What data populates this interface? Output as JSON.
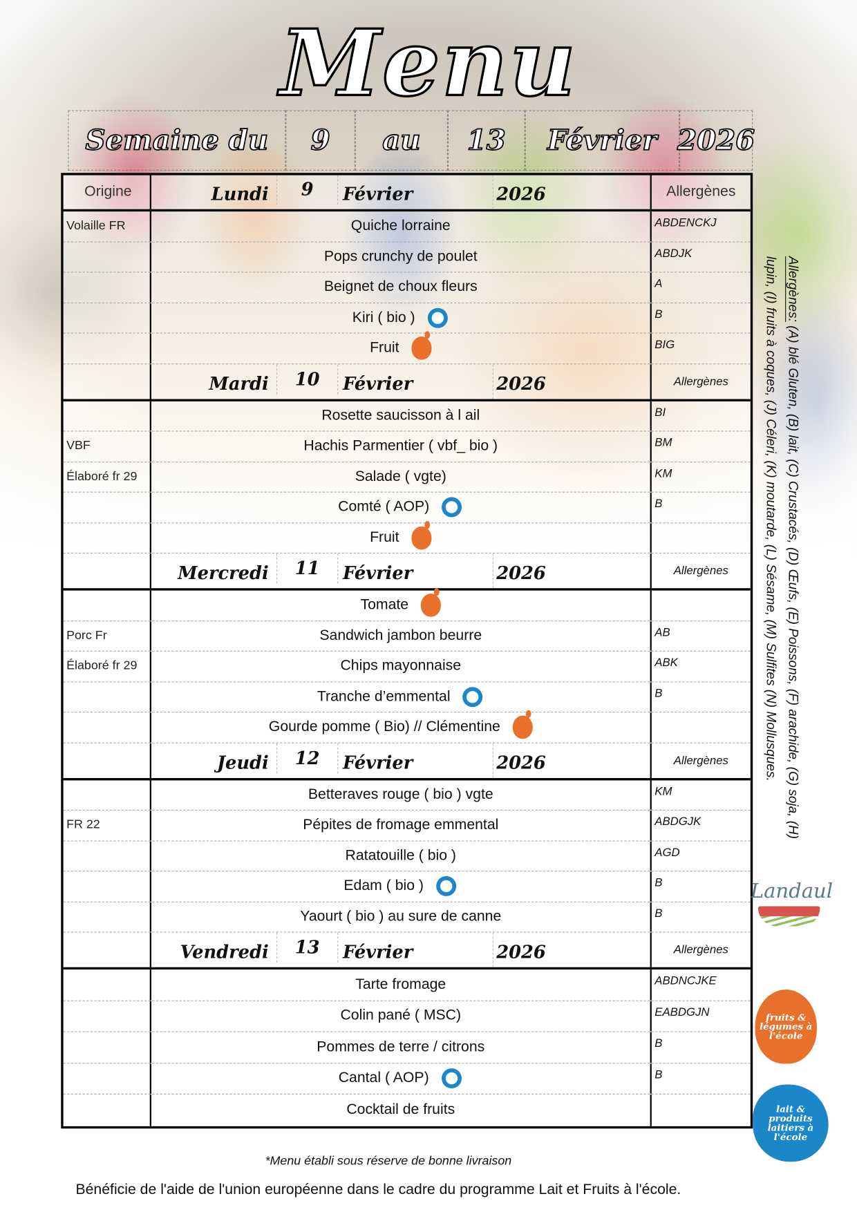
{
  "title": "Menu",
  "week": {
    "label": "Semaine du",
    "start": "9",
    "sep": "au",
    "end": "13",
    "month": "Février",
    "year": "2026"
  },
  "table_header": {
    "origin": "Origine",
    "allergens": "Allergènes"
  },
  "days": [
    {
      "day": "Lundi",
      "num": "9",
      "month": "Février",
      "year": "2026",
      "allergen_label": "",
      "items": [
        {
          "origin": "Volaille FR",
          "dish": "Quiche lorraine",
          "allergens": "ABDENCKJ",
          "logo": ""
        },
        {
          "origin": "",
          "dish": "Pops crunchy de poulet",
          "allergens": "ABDJK",
          "logo": ""
        },
        {
          "origin": "",
          "dish": "Beignet de  choux fleurs",
          "allergens": "A",
          "logo": ""
        },
        {
          "origin": "",
          "dish": "Kiri   ( bio )",
          "allergens": "B",
          "logo": "milk"
        },
        {
          "origin": "",
          "dish": "Fruit",
          "allergens": "BIG",
          "logo": "fruit"
        }
      ]
    },
    {
      "day": "Mardi",
      "num": "10",
      "month": "Février",
      "year": "2026",
      "allergen_label": "Allergènes",
      "items": [
        {
          "origin": "",
          "dish": "Rosette saucisson à l ail",
          "allergens": "BI",
          "logo": ""
        },
        {
          "origin": "VBF",
          "dish": "Hachis Parmentier  ( vbf_ bio )",
          "allergens": "BM",
          "logo": ""
        },
        {
          "origin": "Élaboré fr 29",
          "dish": "Salade  ( vgte)",
          "allergens": "KM",
          "logo": ""
        },
        {
          "origin": "",
          "dish": "Comté  ( AOP)",
          "allergens": "B",
          "logo": "milk"
        },
        {
          "origin": "",
          "dish": "Fruit",
          "allergens": "",
          "logo": "fruit"
        }
      ]
    },
    {
      "day": "Mercredi",
      "num": "11",
      "month": "Février",
      "year": "2026",
      "allergen_label": "Allergènes",
      "items": [
        {
          "origin": "",
          "dish": "Tomate",
          "allergens": "",
          "logo": "fruit"
        },
        {
          "origin": "Porc Fr",
          "dish": "Sandwich jambon beurre",
          "allergens": "AB",
          "logo": ""
        },
        {
          "origin": "Élaboré fr 29",
          "dish": "Chips mayonnaise",
          "allergens": "ABK",
          "logo": ""
        },
        {
          "origin": "",
          "dish": "Tranche d’emmental",
          "allergens": "B",
          "logo": "milk"
        },
        {
          "origin": "",
          "dish": "Gourde pomme   ( Bio)   // Clémentine",
          "allergens": "",
          "logo": "fruit"
        }
      ]
    },
    {
      "day": "Jeudi",
      "num": "12",
      "month": "Février",
      "year": "2026",
      "allergen_label": "Allergènes",
      "items": [
        {
          "origin": "",
          "dish": "Betteraves rouge ( bio ) vgte",
          "allergens": "KM",
          "logo": ""
        },
        {
          "origin": "FR 22",
          "dish": "Pépites de  fromage emmental",
          "allergens": "ABDGJK",
          "logo": ""
        },
        {
          "origin": "",
          "dish": "Ratatouille ( bio )",
          "allergens": "AGD",
          "logo": ""
        },
        {
          "origin": "",
          "dish": "Edam ( bio )",
          "allergens": "B",
          "logo": "milk"
        },
        {
          "origin": "",
          "dish": "Yaourt ( bio ) au sure de canne",
          "allergens": "B",
          "logo": ""
        }
      ]
    },
    {
      "day": "Vendredi",
      "num": "13",
      "month": "Février",
      "year": "2026",
      "allergen_label": "Allergènes",
      "items": [
        {
          "origin": "",
          "dish": "Tarte fromage",
          "allergens": "ABDNCJKE",
          "logo": ""
        },
        {
          "origin": "",
          "dish": "Colin  pané ( MSC)",
          "allergens": "EABDGJN",
          "logo": ""
        },
        {
          "origin": "",
          "dish": "Pommes de terre / citrons",
          "allergens": "B",
          "logo": ""
        },
        {
          "origin": "",
          "dish": "Cantal ( AOP)",
          "allergens": "B",
          "logo": "milk"
        },
        {
          "origin": "",
          "dish": "Cocktail de fruits",
          "allergens": "",
          "logo": ""
        }
      ]
    }
  ],
  "allergen_legend": {
    "label": "Allergènes:",
    "text": " (A) blé Gluten, (B) lait, (C) Crustacés, (D) Œufs, (E) Poissons, (F) arachide, (G) soja, (H) lupin, (I) fruits à coques, (J) Céleri, (K) moutarde, (L) Sésame, (M) Sulfites (N) Mollusques."
  },
  "logos": {
    "town": "Landaul",
    "fruits": "fruits & légumes à l'école",
    "milk": "lait & produits laitiers à l'école"
  },
  "colors": {
    "fruit_logo": "#e8702a",
    "milk_logo": "#1b86c8",
    "town_logo": "#d9534f"
  },
  "footer": {
    "note": "*Menu établi sous réserve de bonne livraison",
    "eu": "Bénéficie de l'aide de l'union européenne dans le cadre du programme Lait et Fruits à l'école."
  }
}
